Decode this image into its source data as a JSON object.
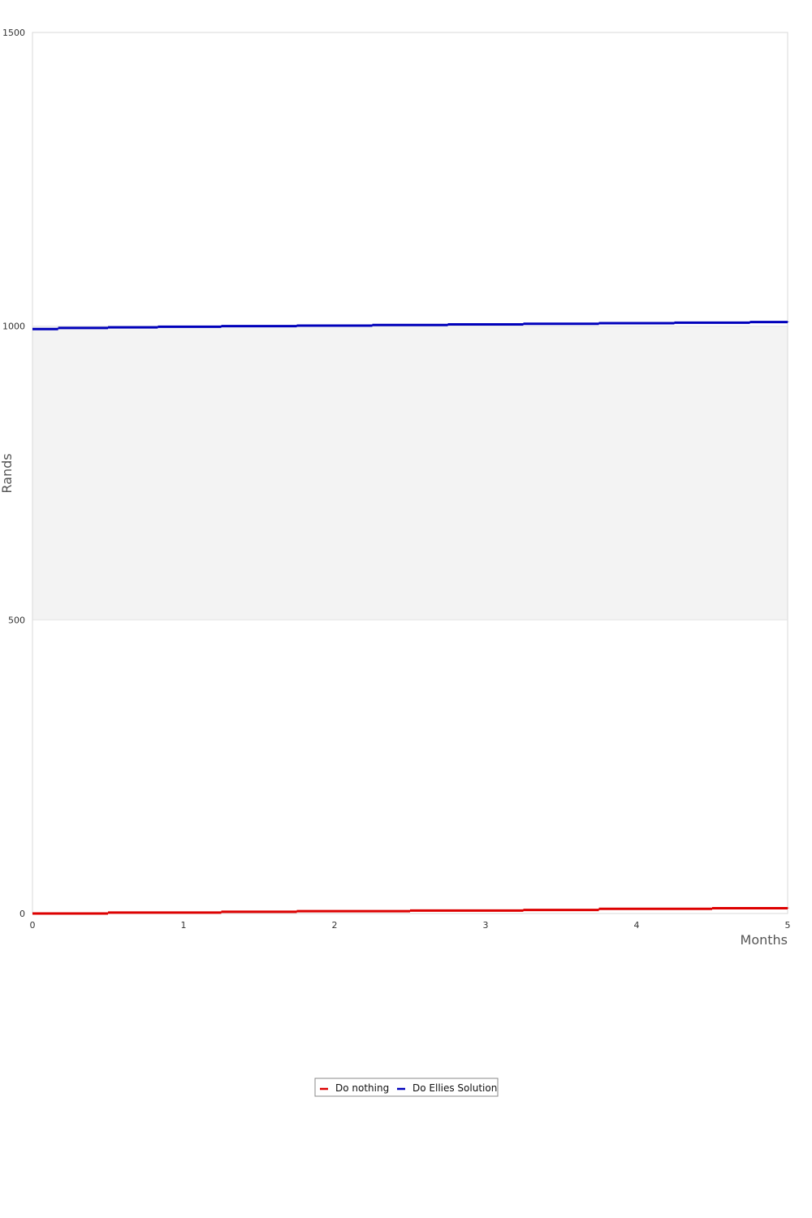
{
  "chart_data": {
    "type": "line",
    "title": "",
    "xlabel": "Months",
    "ylabel": "Rands",
    "xlim": [
      0,
      5
    ],
    "ylim": [
      0,
      1500
    ],
    "x_ticks": [
      "0",
      "1",
      "2",
      "3",
      "4",
      "5"
    ],
    "y_ticks": [
      "0",
      "500",
      "1000",
      "1500"
    ],
    "shaded_band": [
      500,
      1000
    ],
    "grid": false,
    "legend_position": "bottom-center",
    "series": [
      {
        "name": "Do nothing",
        "color": "#dd0000",
        "x": [
          0,
          0.5,
          1.25,
          1.75,
          2.5,
          3.25,
          3.75,
          4.5,
          5
        ],
        "y": [
          0,
          1.5,
          3,
          4,
          5,
          6,
          8,
          9,
          10
        ]
      },
      {
        "name": "Do Ellies Solution",
        "color": "#0000bb",
        "x": [
          0,
          0.17,
          0.5,
          0.83,
          1.25,
          1.75,
          2.25,
          2.75,
          3.25,
          3.75,
          4.25,
          4.75,
          5
        ],
        "y": [
          995,
          997,
          998,
          999,
          1000,
          1001,
          1002,
          1003,
          1004,
          1005,
          1006,
          1007,
          1008
        ]
      }
    ]
  }
}
